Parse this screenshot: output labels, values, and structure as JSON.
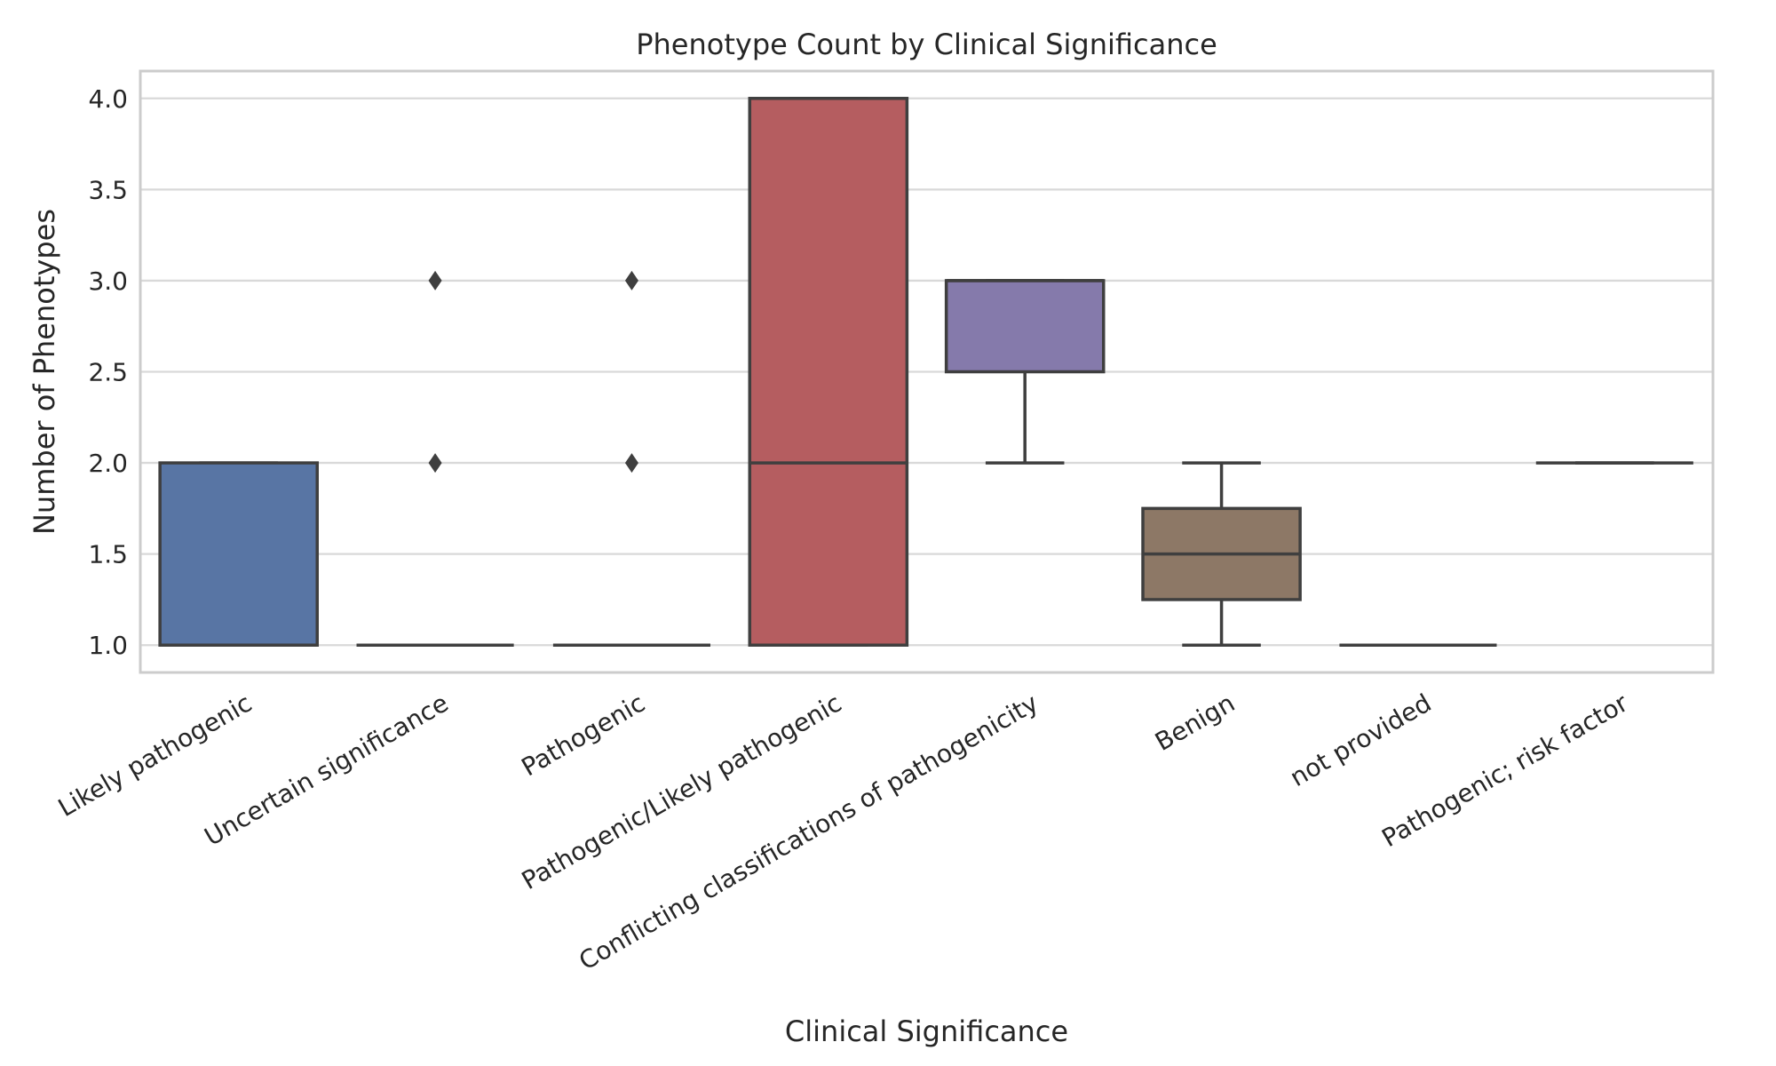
{
  "chart_data": {
    "type": "box",
    "title": "Phenotype Count by Clinical Significance",
    "xlabel": "Clinical Significance",
    "ylabel": "Number of Phenotypes",
    "ylim": [
      0.85,
      4.15
    ],
    "yticks": [
      1.0,
      1.5,
      2.0,
      2.5,
      3.0,
      3.5,
      4.0
    ],
    "ytick_labels": [
      "1.0",
      "1.5",
      "2.0",
      "2.5",
      "3.0",
      "3.5",
      "4.0"
    ],
    "grid": true,
    "categories": [
      "Likely pathogenic",
      "Uncertain significance",
      "Pathogenic",
      "Pathogenic/Likely pathogenic",
      "Conflicting classifications of pathogenicity",
      "Benign",
      "not provided",
      "Pathogenic; risk factor"
    ],
    "boxes": [
      {
        "q1": 1.0,
        "median": 1.0,
        "q3": 2.0,
        "whisker_low": 1.0,
        "whisker_high": 2.0,
        "fliers": [],
        "color": "#5875a4"
      },
      {
        "q1": 1.0,
        "median": 1.0,
        "q3": 1.0,
        "whisker_low": 1.0,
        "whisker_high": 1.0,
        "fliers": [
          2.0,
          3.0
        ],
        "color": "#cc8963"
      },
      {
        "q1": 1.0,
        "median": 1.0,
        "q3": 1.0,
        "whisker_low": 1.0,
        "whisker_high": 1.0,
        "fliers": [
          2.0,
          3.0
        ],
        "color": "#5f9e6e"
      },
      {
        "q1": 1.0,
        "median": 2.0,
        "q3": 4.0,
        "whisker_low": 1.0,
        "whisker_high": 4.0,
        "fliers": [],
        "color": "#b55d60"
      },
      {
        "q1": 2.5,
        "median": 3.0,
        "q3": 3.0,
        "whisker_low": 2.0,
        "whisker_high": 3.0,
        "fliers": [],
        "color": "#857aab"
      },
      {
        "q1": 1.25,
        "median": 1.5,
        "q3": 1.75,
        "whisker_low": 1.0,
        "whisker_high": 2.0,
        "fliers": [],
        "color": "#8d7866"
      },
      {
        "q1": 1.0,
        "median": 1.0,
        "q3": 1.0,
        "whisker_low": 1.0,
        "whisker_high": 1.0,
        "fliers": [],
        "color": "#d095bf"
      },
      {
        "q1": 2.0,
        "median": 2.0,
        "q3": 2.0,
        "whisker_low": 2.0,
        "whisker_high": 2.0,
        "fliers": [],
        "color": "#8c8c8c"
      }
    ]
  }
}
